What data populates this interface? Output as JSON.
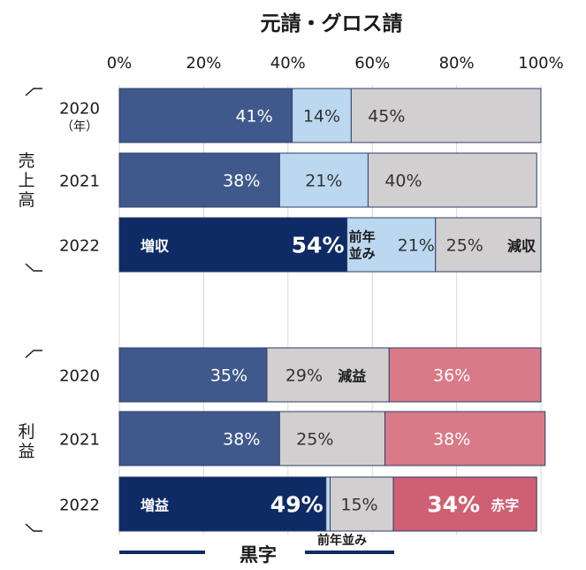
{
  "chart_data": {
    "type": "bar",
    "stacked": "percent",
    "orientation": "horizontal",
    "title": "元請・グロス請",
    "x_ticks": [
      "0%",
      "20%",
      "40%",
      "60%",
      "80%",
      "100%"
    ],
    "xlim": [
      0,
      100
    ],
    "grid": true,
    "unit": "%",
    "groups": [
      {
        "label": "売上高",
        "rows": [
          {
            "year": "2020",
            "sub": "（年）",
            "segments": [
              {
                "value": 41,
                "label": "41%",
                "category": "kuroji"
              },
              {
                "value": 14,
                "label": "14%",
                "category": "maedoshi"
              },
              {
                "value": 45,
                "label": "45%",
                "category": "gray"
              }
            ]
          },
          {
            "year": "2021",
            "sub": "",
            "segments": [
              {
                "value": 38,
                "label": "38%",
                "category": "kuroji"
              },
              {
                "value": 21,
                "label": "21%",
                "category": "maedoshi"
              },
              {
                "value": 40,
                "label": "40%",
                "category": "gray"
              }
            ]
          },
          {
            "year": "2022",
            "sub": "",
            "highlight": true,
            "segments": [
              {
                "value": 54,
                "label": "54%",
                "category": "kuroji",
                "tag": "増収"
              },
              {
                "value": 21,
                "label": "21%",
                "category": "maedoshi",
                "tag": "前年\n並み"
              },
              {
                "value": 25,
                "label": "25%",
                "category": "gray",
                "tag": "減収"
              }
            ]
          }
        ]
      },
      {
        "label": "利益",
        "rows": [
          {
            "year": "2020",
            "sub": "",
            "segments": [
              {
                "value": 35,
                "label": "35%",
                "category": "kuroji"
              },
              {
                "value": 29,
                "label": "29%",
                "category": "gray",
                "tag": "減益"
              },
              {
                "value": 36,
                "label": "36%",
                "category": "akaji"
              }
            ]
          },
          {
            "year": "2021",
            "sub": "",
            "segments": [
              {
                "value": 38,
                "label": "38%",
                "category": "kuroji"
              },
              {
                "value": 25,
                "label": "25%",
                "category": "gray"
              },
              {
                "value": 38,
                "label": "38%",
                "category": "akaji"
              }
            ]
          },
          {
            "year": "2022",
            "sub": "",
            "highlight": true,
            "segments": [
              {
                "value": 49,
                "label": "49%",
                "category": "kuroji",
                "tag": "増益"
              },
              {
                "value": 1,
                "label": "",
                "category": "maedoshi"
              },
              {
                "value": 15,
                "label": "15%",
                "category": "gray"
              },
              {
                "value": 34,
                "label": "34%",
                "category": "akaji",
                "tag": "赤字"
              }
            ]
          }
        ]
      }
    ],
    "bottom_labels": {
      "kuroji": "黒字",
      "maedoshi": "前年並み"
    },
    "colors": {
      "kuroji": "#40598c",
      "kuroji_highlight": "#0e2b66",
      "maedoshi": "#bcd8f0",
      "gray": "#d2cfd0",
      "akaji": "#d97a88",
      "akaji_highlight": "#cf5f73",
      "grid": "#d9d9d9"
    }
  }
}
